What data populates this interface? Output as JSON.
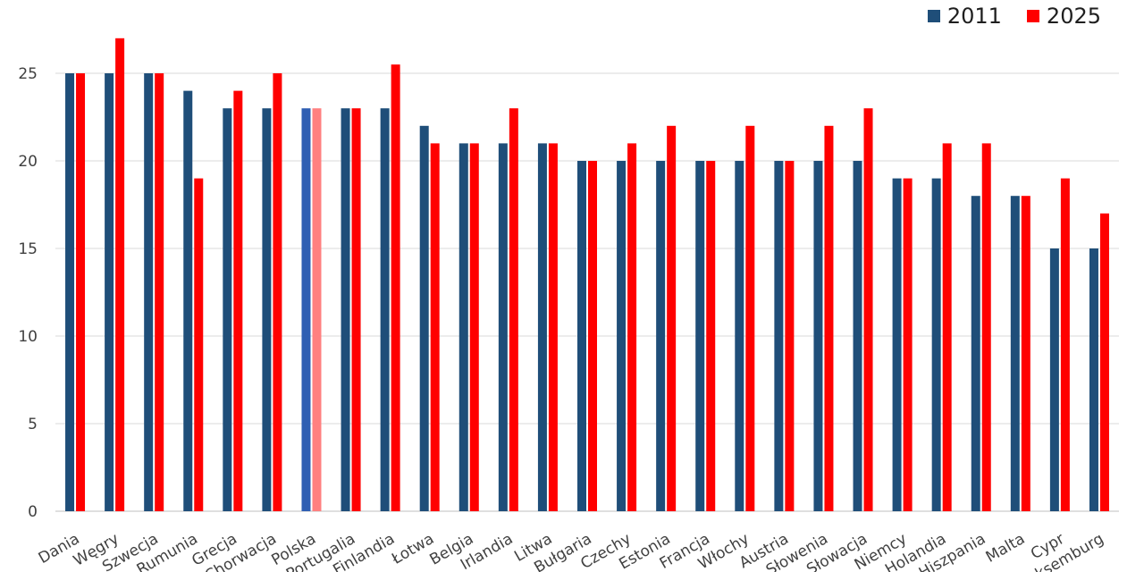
{
  "chart_data": {
    "type": "bar",
    "categories": [
      "Dania",
      "Węgry",
      "Szwecja",
      "Rumunia",
      "Grecja",
      "Chorwacja",
      "Polska",
      "Portugalia",
      "Finlandia",
      "Łotwa",
      "Belgia",
      "Irlandia",
      "Litwa",
      "Bułgaria",
      "Czechy",
      "Estonia",
      "Francja",
      "Włochy",
      "Austria",
      "Słowenia",
      "Słowacja",
      "Niemcy",
      "Holandia",
      "Hiszpania",
      "Malta",
      "Cypr",
      "Luksemburg"
    ],
    "series": [
      {
        "name": "2011",
        "color": "#1f4e79",
        "values": [
          25,
          25,
          25,
          24,
          23,
          23,
          23,
          23,
          23,
          22,
          21,
          21,
          21,
          20,
          20,
          20,
          20,
          20,
          20,
          20,
          20,
          19,
          19,
          18,
          18,
          15,
          15
        ]
      },
      {
        "name": "2025",
        "color": "#ff0000",
        "values": [
          25,
          27,
          25,
          19,
          24,
          25,
          23,
          23,
          25.5,
          21,
          21,
          23,
          21,
          20,
          21,
          22,
          20,
          22,
          20,
          22,
          23,
          19,
          21,
          21,
          18,
          19,
          17
        ]
      }
    ],
    "highlight": {
      "category": "Polska",
      "colors": [
        "#2f5fb3",
        "#ff8080"
      ]
    },
    "yticks": [
      "0",
      "5",
      "10",
      "15",
      "20",
      "25"
    ],
    "ylim": [
      0,
      27
    ],
    "grid": true,
    "legend_position": "top-right"
  }
}
